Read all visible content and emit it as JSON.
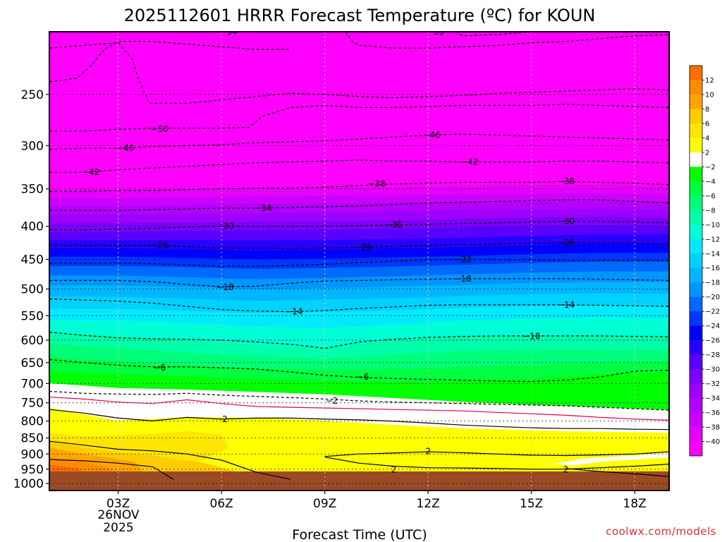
{
  "chart_data": {
    "type": "heatmap",
    "title": "2025112601 HRRR Forecast Temperature (ºC) for KOUN",
    "xlabel": "Forecast Time (UTC)",
    "watermark": "coolwx.com/models",
    "x_ticks": [
      "03Z",
      "06Z",
      "09Z",
      "12Z",
      "15Z",
      "18Z"
    ],
    "x_date_label": [
      "26NOV",
      "2025"
    ],
    "xlim_hours": [
      1,
      19
    ],
    "y_ticks": [
      250,
      300,
      350,
      400,
      450,
      500,
      550,
      600,
      650,
      700,
      750,
      800,
      850,
      900,
      950,
      1000
    ],
    "ylim_hpa": [
      1025,
      200
    ],
    "y_scale": "log-pressure",
    "grid": true,
    "colorbar": {
      "placement": "right",
      "levels": [
        -40,
        -38,
        -36,
        -34,
        -32,
        -30,
        -28,
        -26,
        -24,
        -22,
        -20,
        -18,
        -16,
        -14,
        -12,
        -10,
        -8,
        -6,
        -4,
        -2,
        2,
        4,
        6,
        8,
        10,
        12
      ],
      "colors": [
        "#ff00ff",
        "#e800ff",
        "#cc00ff",
        "#b400ff",
        "#9c00ff",
        "#7d00ff",
        "#5a00ff",
        "#2800ff",
        "#0000ff",
        "#0037ff",
        "#006aff",
        "#0096ff",
        "#00b6ff",
        "#00d2ff",
        "#00ebff",
        "#00ffd7",
        "#00ffaa",
        "#00ff78",
        "#00ff40",
        "#00ff00",
        "#ffffff",
        "#ffff00",
        "#ffe600",
        "#ffcc00",
        "#ffa500",
        "#ff8c00",
        "#ff6e00"
      ]
    },
    "isotherms": [
      {
        "temp": -54,
        "label_at": [
          6.2,
          200
        ]
      },
      {
        "temp": -58,
        "label_at": [
          12.2,
          200
        ]
      },
      {
        "temp": -50,
        "label_at": [
          4.2,
          283
        ]
      },
      {
        "temp": -46,
        "label_at": [
          3.2,
          303
        ]
      },
      {
        "temp": -46,
        "label_at": [
          12.1,
          289
        ]
      },
      {
        "temp": -42,
        "label_at": [
          2.2,
          330
        ]
      },
      {
        "temp": -42,
        "label_at": [
          13.2,
          318
        ]
      },
      {
        "temp": -38,
        "label_at": [
          10.5,
          344
        ]
      },
      {
        "temp": -38,
        "label_at": [
          16.0,
          341
        ]
      },
      {
        "temp": -34,
        "label_at": [
          7.2,
          375
        ]
      },
      {
        "temp": -30,
        "label_at": [
          6.1,
          400
        ]
      },
      {
        "temp": -30,
        "label_at": [
          11.0,
          398
        ]
      },
      {
        "temp": -30,
        "label_at": [
          16.0,
          393
        ]
      },
      {
        "temp": -26,
        "label_at": [
          4.2,
          428
        ]
      },
      {
        "temp": -26,
        "label_at": [
          10.1,
          431
        ]
      },
      {
        "temp": -26,
        "label_at": [
          16.0,
          424
        ]
      },
      {
        "temp": -22,
        "label_at": [
          13.0,
          450
        ]
      },
      {
        "temp": -18,
        "label_at": [
          6.1,
          497
        ]
      },
      {
        "temp": -18,
        "label_at": [
          13.0,
          482
        ]
      },
      {
        "temp": -14,
        "label_at": [
          8.1,
          542
        ]
      },
      {
        "temp": -14,
        "label_at": [
          16.0,
          529
        ]
      },
      {
        "temp": -10,
        "label_at": [
          15.0,
          592
        ]
      },
      {
        "temp": -6,
        "label_at": [
          4.2,
          662
        ]
      },
      {
        "temp": -6,
        "label_at": [
          10.1,
          684
        ]
      },
      {
        "temp": -2,
        "label_at": [
          9.2,
          745
        ]
      },
      {
        "temp": 2,
        "label_at": [
          6.1,
          795
        ]
      },
      {
        "temp": 2,
        "label_at": [
          12.0,
          892
        ]
      },
      {
        "temp": 2,
        "label_at": [
          11.0,
          952
        ]
      },
      {
        "temp": 2,
        "label_at": [
          16.0,
          952
        ]
      }
    ]
  }
}
